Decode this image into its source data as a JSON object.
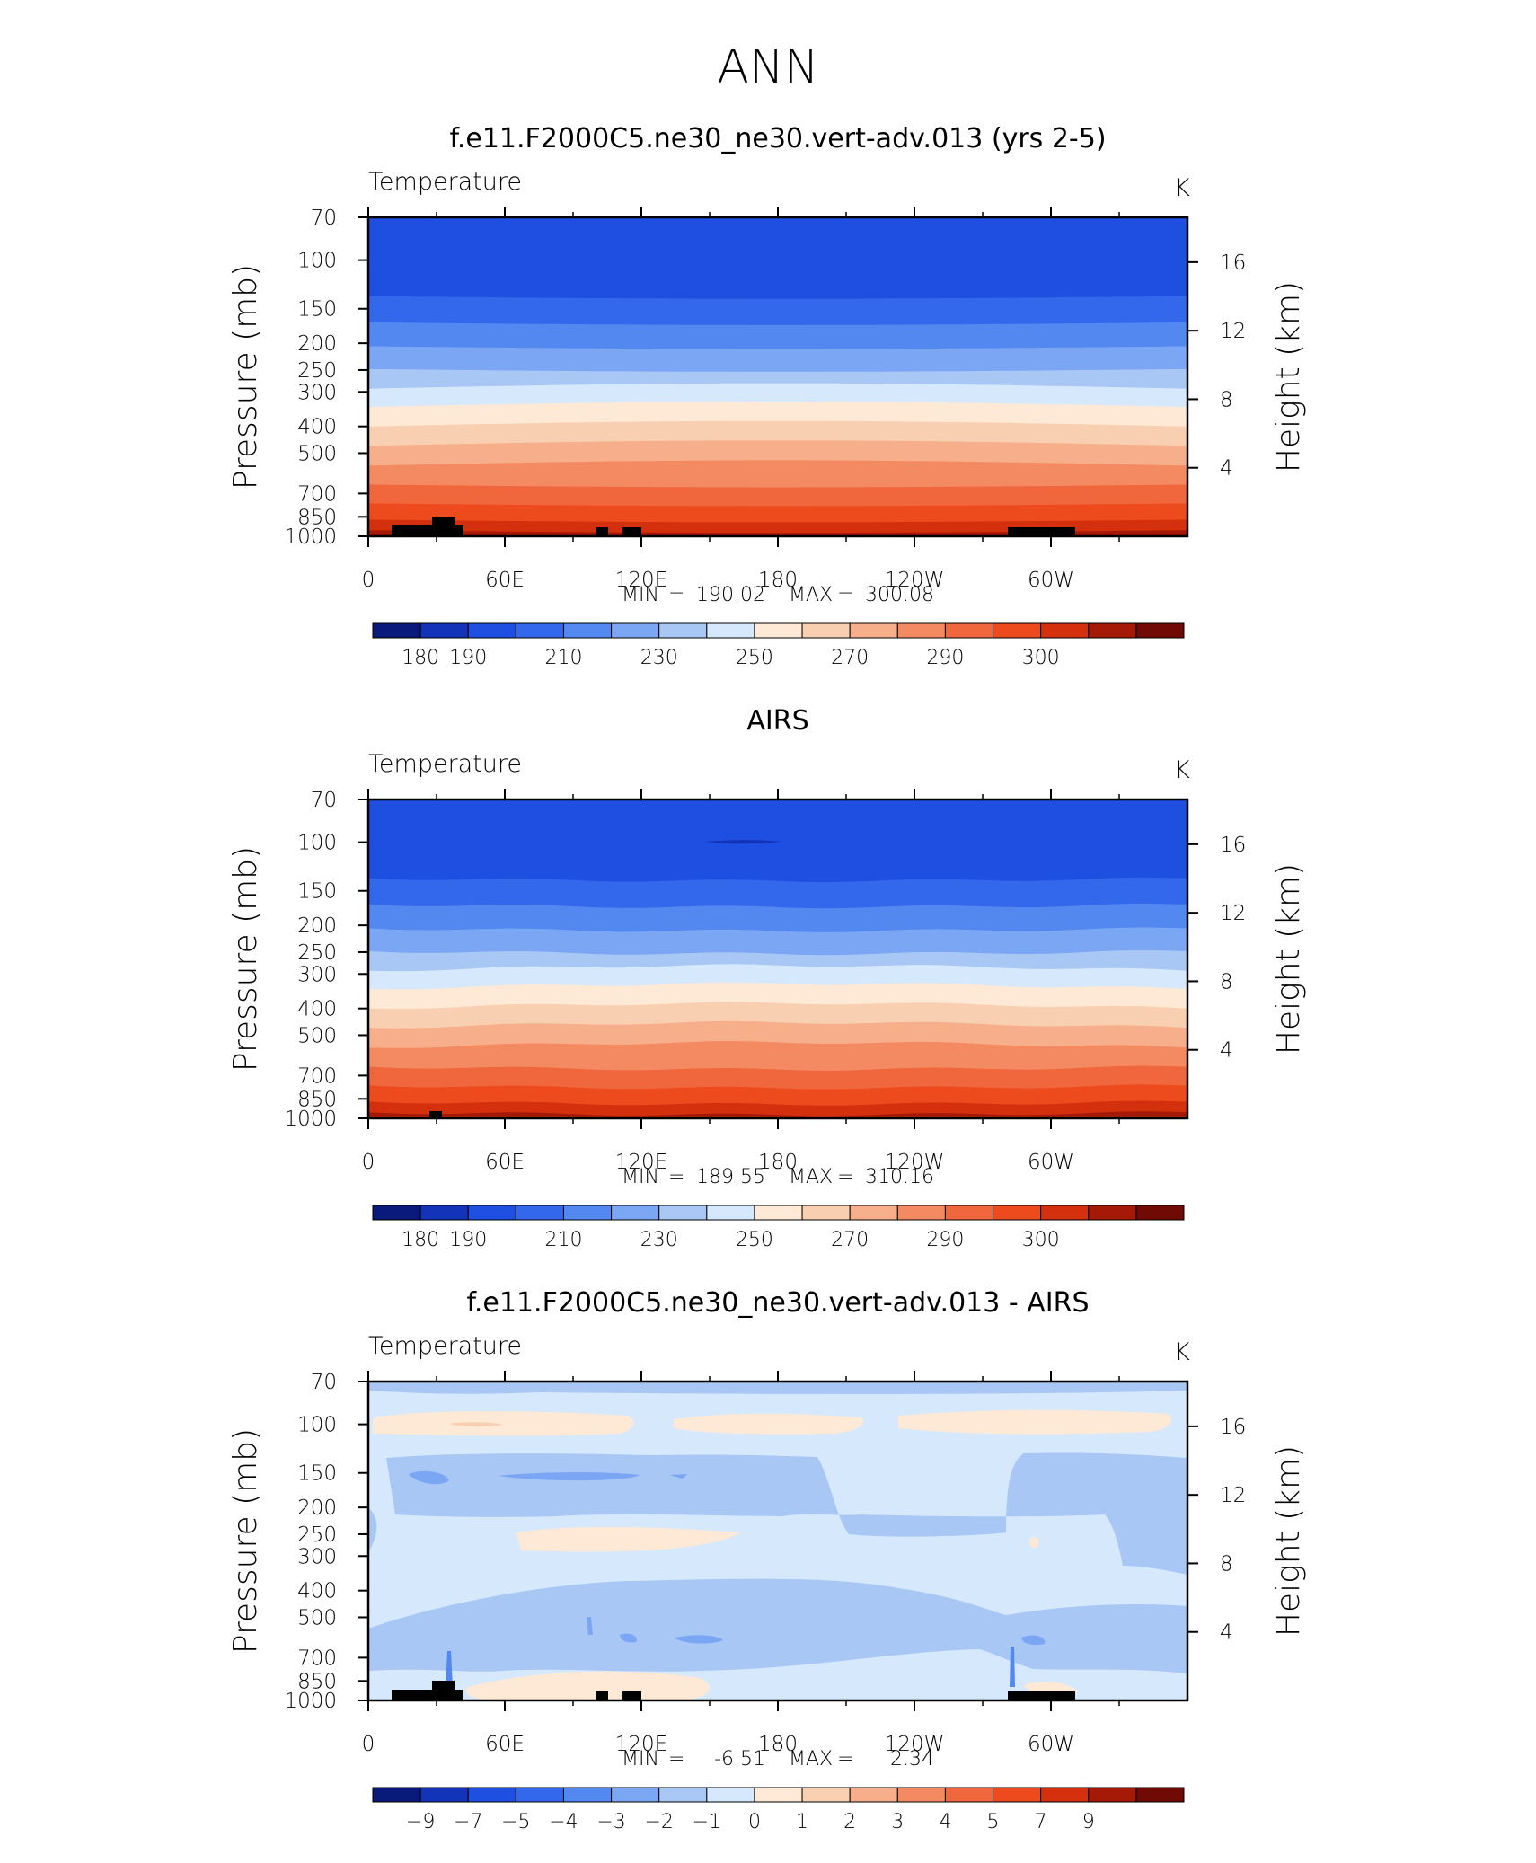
{
  "page": {
    "title": "ANN"
  },
  "chart_data": [
    {
      "type": "heatmap",
      "title": "f.e11.F2000C5.ne30_ne30.vert-adv.013 (yrs 2-5)",
      "subtitle_left": "Temperature",
      "units": "K",
      "ylabel": "Pressure (mb)",
      "ylabel_right": "Height (km)",
      "x_ticks": [
        "0",
        "60E",
        "120E",
        "180",
        "120W",
        "60W"
      ],
      "y_ticks": [
        "70",
        "100",
        "150",
        "200",
        "250",
        "300",
        "400",
        "500",
        "700",
        "850",
        "1000"
      ],
      "y_ticks_right": [
        "16",
        "12",
        "8",
        "4"
      ],
      "stats": {
        "min_label": "MIN",
        "min": "190.02",
        "max_label": "MAX",
        "max": "300.08"
      },
      "colorbar": {
        "labels": [
          "180",
          "190",
          "210",
          "230",
          "250",
          "270",
          "290",
          "300"
        ],
        "colors": [
          "#0a1a7a",
          "#1334b8",
          "#1f4fe0",
          "#3468ec",
          "#5288f0",
          "#7aa6f3",
          "#a9c7f5",
          "#d6e8fb",
          "#fde9d6",
          "#f9cfb2",
          "#f7ae8a",
          "#f48a62",
          "#f0663d",
          "#ed4b1e",
          "#d4300e",
          "#a41a06",
          "#700a04"
        ]
      }
    },
    {
      "type": "heatmap",
      "title": "AIRS",
      "subtitle_left": "Temperature",
      "units": "K",
      "ylabel": "Pressure (mb)",
      "ylabel_right": "Height (km)",
      "x_ticks": [
        "0",
        "60E",
        "120E",
        "180",
        "120W",
        "60W"
      ],
      "y_ticks": [
        "70",
        "100",
        "150",
        "200",
        "250",
        "300",
        "400",
        "500",
        "700",
        "850",
        "1000"
      ],
      "y_ticks_right": [
        "16",
        "12",
        "8",
        "4"
      ],
      "stats": {
        "min_label": "MIN",
        "min": "189.55",
        "max_label": "MAX",
        "max": "310.16"
      },
      "colorbar": {
        "labels": [
          "180",
          "190",
          "210",
          "230",
          "250",
          "270",
          "290",
          "300"
        ],
        "colors": [
          "#0a1a7a",
          "#1334b8",
          "#1f4fe0",
          "#3468ec",
          "#5288f0",
          "#7aa6f3",
          "#a9c7f5",
          "#d6e8fb",
          "#fde9d6",
          "#f9cfb2",
          "#f7ae8a",
          "#f48a62",
          "#f0663d",
          "#ed4b1e",
          "#d4300e",
          "#a41a06",
          "#700a04"
        ]
      }
    },
    {
      "type": "heatmap",
      "title": "f.e11.F2000C5.ne30_ne30.vert-adv.013 - AIRS",
      "subtitle_left": "Temperature",
      "units": "K",
      "ylabel": "Pressure (mb)",
      "ylabel_right": "Height (km)",
      "x_ticks": [
        "0",
        "60E",
        "120E",
        "180",
        "120W",
        "60W"
      ],
      "y_ticks": [
        "70",
        "100",
        "150",
        "200",
        "250",
        "300",
        "400",
        "500",
        "700",
        "850",
        "1000"
      ],
      "y_ticks_right": [
        "16",
        "12",
        "8",
        "4"
      ],
      "stats": {
        "min_label": "MIN",
        "min": "-6.51",
        "max_label": "MAX",
        "max": "2.34"
      },
      "colorbar": {
        "labels": [
          "−9",
          "−7",
          "−5",
          "−4",
          "−3",
          "−2",
          "−1",
          "0",
          "1",
          "2",
          "3",
          "4",
          "5",
          "7",
          "9"
        ],
        "colors": [
          "#0a1a7a",
          "#1334b8",
          "#1f4fe0",
          "#3468ec",
          "#5288f0",
          "#7aa6f3",
          "#a9c7f5",
          "#d6e8fb",
          "#fde9d6",
          "#f9cfb2",
          "#f7ae8a",
          "#f48a62",
          "#f0663d",
          "#ed4b1e",
          "#d4300e",
          "#a41a06",
          "#700a04"
        ]
      }
    }
  ]
}
